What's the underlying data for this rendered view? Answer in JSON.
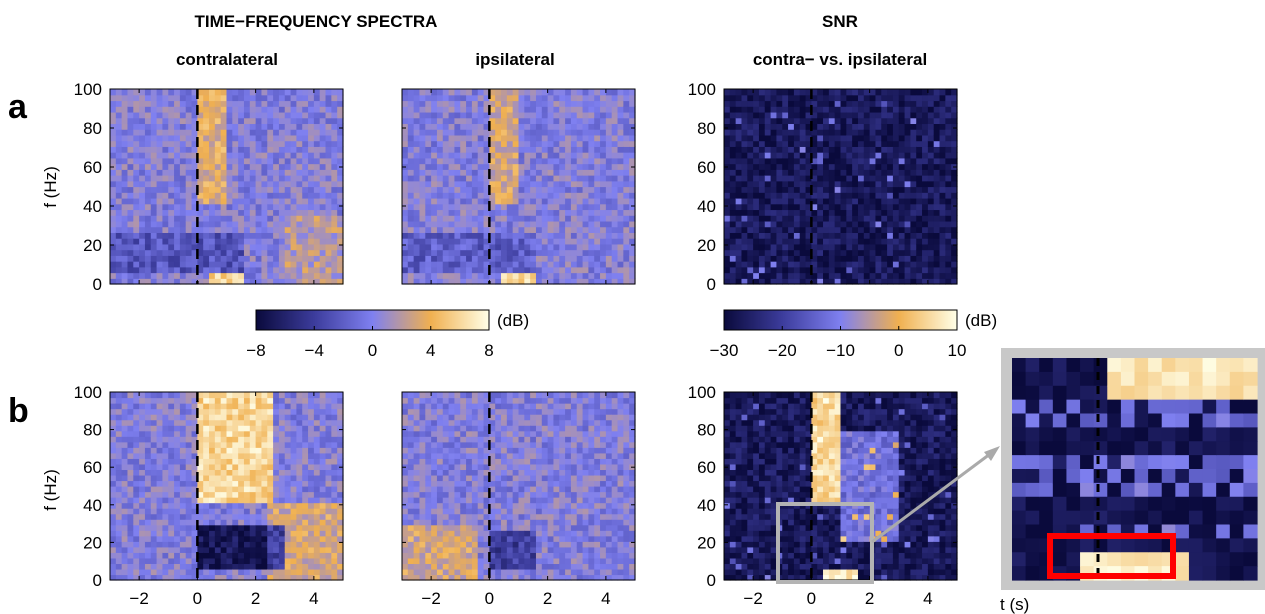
{
  "headers": {
    "spectra": "TIME−FREQUENCY SPECTRA",
    "snr": "SNR",
    "col_contra": "contralateral",
    "col_ipsi": "ipsilateral",
    "col_snr": "contra− vs. ipsilateral"
  },
  "rows": [
    "a",
    "b"
  ],
  "ylabel": "f (Hz)",
  "xlabel": "t (s)",
  "colorbar_spectra": {
    "unit": "(dB)",
    "range": [
      -8,
      8
    ],
    "ticks": [
      "−8",
      "−4",
      "0",
      "4",
      "8"
    ]
  },
  "colorbar_snr": {
    "unit": "(dB)",
    "range": [
      -30,
      10
    ],
    "ticks": [
      "−30",
      "−20",
      "−10",
      "0",
      "10"
    ]
  },
  "colors": {
    "map_low": "#0a0a3c",
    "map_mid": "#7f80f0",
    "map_high_orange": "#f0b050",
    "map_high_white": "#ffffe8",
    "dashed_line": "#000000",
    "zoom_box": "#c0c0c0",
    "highlight_box": "#ff0000"
  },
  "chart_data": [
    {
      "type": "heatmap",
      "row": "a",
      "column": "contralateral",
      "x_range": [
        -3,
        5
      ],
      "y_range": [
        0,
        100
      ],
      "clim": [
        -8,
        8
      ],
      "unit": "dB",
      "xticks": [
        -2,
        0,
        2,
        4
      ],
      "yticks": [
        0,
        20,
        40,
        60,
        80,
        100
      ],
      "xticklabels_shown": false,
      "yticklabels_shown": true,
      "event_time": 0,
      "features": [
        {
          "t": [
            0,
            1.0
          ],
          "f": [
            40,
            100
          ],
          "level_db": 3.5,
          "desc": "broadband gamma increase after onset"
        },
        {
          "t": [
            -3,
            1.5
          ],
          "f": [
            5,
            25
          ],
          "level_db": -2.5,
          "desc": "alpha/beta decrease"
        },
        {
          "t": [
            0.5,
            1.5
          ],
          "f": [
            0,
            5
          ],
          "level_db": 6,
          "desc": "low-frequency increase"
        },
        {
          "t": [
            3,
            5
          ],
          "f": [
            0,
            35
          ],
          "level_db": 2,
          "desc": "late rebound"
        }
      ]
    },
    {
      "type": "heatmap",
      "row": "a",
      "column": "ipsilateral",
      "x_range": [
        -3,
        5
      ],
      "y_range": [
        0,
        100
      ],
      "clim": [
        -8,
        8
      ],
      "unit": "dB",
      "xticks": [
        -2,
        0,
        2,
        4
      ],
      "yticks": [
        0,
        20,
        40,
        60,
        80,
        100
      ],
      "xticklabels_shown": false,
      "yticklabels_shown": false,
      "event_time": 0,
      "features": [
        {
          "t": [
            0,
            1.0
          ],
          "f": [
            40,
            100
          ],
          "level_db": 3,
          "desc": "broadband gamma increase"
        },
        {
          "t": [
            -3,
            1.5
          ],
          "f": [
            5,
            25
          ],
          "level_db": -2,
          "desc": "alpha/beta decrease"
        },
        {
          "t": [
            0.5,
            1.5
          ],
          "f": [
            0,
            5
          ],
          "level_db": 6,
          "desc": "low-frequency increase"
        }
      ]
    },
    {
      "type": "heatmap",
      "row": "a",
      "column": "snr",
      "x_range": [
        -3,
        5
      ],
      "y_range": [
        0,
        100
      ],
      "clim": [
        -30,
        10
      ],
      "unit": "dB",
      "xticks": [
        -2,
        0,
        2,
        4
      ],
      "yticks": [
        0,
        20,
        40,
        60,
        80,
        100
      ],
      "xticklabels_shown": false,
      "yticklabels_shown": true,
      "event_time": 0,
      "features": [
        {
          "t": [
            -3,
            5
          ],
          "f": [
            0,
            100
          ],
          "level_db": -28,
          "desc": "uniformly low SNR with sparse speckles"
        }
      ]
    },
    {
      "type": "heatmap",
      "row": "b",
      "column": "contralateral",
      "x_range": [
        -3,
        5
      ],
      "y_range": [
        0,
        100
      ],
      "clim": [
        -8,
        8
      ],
      "unit": "dB",
      "xticks": [
        -2,
        0,
        2,
        4
      ],
      "yticks": [
        0,
        20,
        40,
        60,
        80,
        100
      ],
      "xticklabels_shown": true,
      "yticklabels_shown": true,
      "event_time": 0,
      "features": [
        {
          "t": [
            0,
            2.5
          ],
          "f": [
            40,
            100
          ],
          "level_db": 6,
          "desc": "strong gamma increase"
        },
        {
          "t": [
            0,
            3
          ],
          "f": [
            5,
            30
          ],
          "level_db": -7,
          "desc": "strong alpha/beta decrease"
        },
        {
          "t": [
            2.5,
            5
          ],
          "f": [
            0,
            40
          ],
          "level_db": 3,
          "desc": "late rebound"
        }
      ]
    },
    {
      "type": "heatmap",
      "row": "b",
      "column": "ipsilateral",
      "x_range": [
        -3,
        5
      ],
      "y_range": [
        0,
        100
      ],
      "clim": [
        -8,
        8
      ],
      "unit": "dB",
      "xticks": [
        -2,
        0,
        2,
        4
      ],
      "yticks": [
        0,
        20,
        40,
        60,
        80,
        100
      ],
      "xticklabels_shown": true,
      "yticklabels_shown": false,
      "event_time": 0,
      "features": [
        {
          "t": [
            -3,
            -0.5
          ],
          "f": [
            0,
            30
          ],
          "level_db": 3,
          "desc": "pre-onset low-frequency increase"
        },
        {
          "t": [
            0,
            1.5
          ],
          "f": [
            5,
            25
          ],
          "level_db": -4,
          "desc": "alpha/beta decrease"
        }
      ]
    },
    {
      "type": "heatmap",
      "row": "b",
      "column": "snr",
      "x_range": [
        -3,
        5
      ],
      "y_range": [
        0,
        100
      ],
      "clim": [
        -30,
        10
      ],
      "unit": "dB",
      "xticks": [
        -2,
        0,
        2,
        4
      ],
      "yticks": [
        0,
        20,
        40,
        60,
        80,
        100
      ],
      "xticklabels_shown": true,
      "yticklabels_shown": true,
      "event_time": 0,
      "features": [
        {
          "t": [
            0,
            1.0
          ],
          "f": [
            40,
            100
          ],
          "level_db": 5,
          "desc": "high SNR gamma band"
        },
        {
          "t": [
            1,
            3
          ],
          "f": [
            20,
            80
          ],
          "level_db": -12,
          "desc": "moderate SNR"
        },
        {
          "t": [
            0.5,
            1.5
          ],
          "f": [
            0,
            5
          ],
          "level_db": 8,
          "desc": "low-frequency high SNR"
        }
      ],
      "zoom_region": {
        "t": [
          -0.5,
          2
        ],
        "f": [
          0,
          40
        ]
      }
    }
  ]
}
